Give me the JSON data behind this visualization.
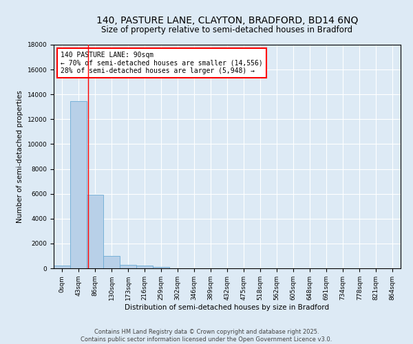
{
  "title": "140, PASTURE LANE, CLAYTON, BRADFORD, BD14 6NQ",
  "subtitle": "Size of property relative to semi-detached houses in Bradford",
  "xlabel": "Distribution of semi-detached houses by size in Bradford",
  "ylabel": "Number of semi-detached properties",
  "bar_color": "#b8d0e8",
  "bar_edge_color": "#6aaad4",
  "background_color": "#ddeaf5",
  "fig_background_color": "#ddeaf5",
  "grid_color": "#ffffff",
  "bin_labels": [
    "0sqm",
    "43sqm",
    "86sqm",
    "130sqm",
    "173sqm",
    "216sqm",
    "259sqm",
    "302sqm",
    "346sqm",
    "389sqm",
    "432sqm",
    "475sqm",
    "518sqm",
    "562sqm",
    "605sqm",
    "648sqm",
    "691sqm",
    "734sqm",
    "778sqm",
    "821sqm",
    "864sqm"
  ],
  "bin_edges": [
    0,
    43,
    86,
    130,
    173,
    216,
    259,
    302,
    346,
    389,
    432,
    475,
    518,
    562,
    605,
    648,
    691,
    734,
    778,
    821,
    864
  ],
  "bar_values": [
    200,
    13450,
    5950,
    980,
    300,
    240,
    95,
    0,
    0,
    0,
    0,
    0,
    0,
    0,
    0,
    0,
    0,
    0,
    0,
    0
  ],
  "red_line_x": 90,
  "ylim": [
    0,
    18000
  ],
  "yticks": [
    0,
    2000,
    4000,
    6000,
    8000,
    10000,
    12000,
    14000,
    16000,
    18000
  ],
  "annotation_title": "140 PASTURE LANE: 90sqm",
  "annotation_line1": "← 70% of semi-detached houses are smaller (14,556)",
  "annotation_line2": "28% of semi-detached houses are larger (5,948) →",
  "footer_line1": "Contains HM Land Registry data © Crown copyright and database right 2025.",
  "footer_line2": "Contains public sector information licensed under the Open Government Licence v3.0.",
  "title_fontsize": 10,
  "subtitle_fontsize": 8.5,
  "axis_label_fontsize": 7.5,
  "tick_fontsize": 6.5,
  "annotation_fontsize": 7,
  "footer_fontsize": 6
}
